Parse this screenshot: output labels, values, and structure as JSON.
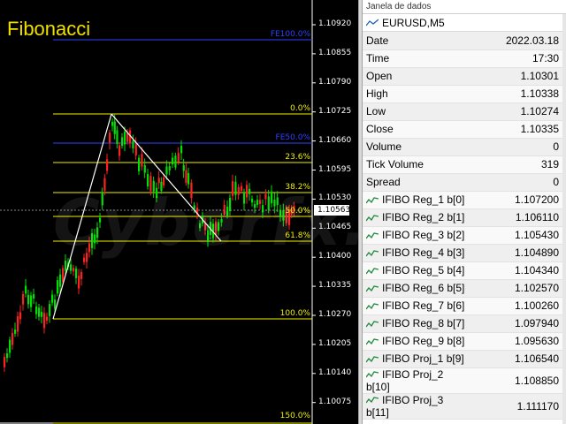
{
  "chart": {
    "title": "Fibonacci",
    "watermark": "Cyberfx.ir",
    "current_price": "1.10563",
    "price_axis": [
      "1.10920",
      "1.10855",
      "1.10790",
      "1.10725",
      "1.10660",
      "1.10595",
      "1.10530",
      "1.10465",
      "1.10400",
      "1.10335",
      "1.10270",
      "1.10205",
      "1.10140",
      "1.10075",
      "1.10010"
    ],
    "fib_levels": [
      {
        "label": "FE100.0%",
        "color": "#3040ff"
      },
      {
        "label": "0.0%",
        "color": "#f0f000"
      },
      {
        "label": "FE50.0%",
        "color": "#3040ff"
      },
      {
        "label": "23.6%",
        "color": "#f0f000"
      },
      {
        "label": "38.2%",
        "color": "#f0f000"
      },
      {
        "label": "50.0%",
        "color": "#f0f000"
      },
      {
        "label": "61.8%",
        "color": "#f0f000"
      },
      {
        "label": "100.0%",
        "color": "#f0f000"
      },
      {
        "label": "150.0%",
        "color": "#f0f000"
      }
    ],
    "colors": {
      "bull": "#00e000",
      "bear": "#ff2020",
      "fib": "#f0f000",
      "proj": "#3040ff",
      "trend": "#ffffff"
    }
  },
  "data_window": {
    "title": "Janela de dados",
    "symbol": "EURUSD,M5",
    "rows": [
      {
        "label": "Date",
        "value": "2022.03.18"
      },
      {
        "label": "Time",
        "value": "17:30"
      },
      {
        "label": "Open",
        "value": "1.10301"
      },
      {
        "label": "High",
        "value": "1.10338"
      },
      {
        "label": "Low",
        "value": "1.10274"
      },
      {
        "label": "Close",
        "value": "1.10335"
      },
      {
        "label": "Volume",
        "value": "0"
      },
      {
        "label": "Tick Volume",
        "value": "319"
      },
      {
        "label": "Spread",
        "value": "0"
      }
    ],
    "indicators": [
      {
        "label": "IFIBO Reg_1 b[0]",
        "value": "1.107200"
      },
      {
        "label": "IFIBO Reg_2 b[1]",
        "value": "1.106110"
      },
      {
        "label": "IFIBO Reg_3 b[2]",
        "value": "1.105430"
      },
      {
        "label": "IFIBO Reg_4 b[3]",
        "value": "1.104890"
      },
      {
        "label": "IFIBO Reg_5 b[4]",
        "value": "1.104340"
      },
      {
        "label": "IFIBO Reg_6 b[5]",
        "value": "1.102570"
      },
      {
        "label": "IFIBO Reg_7 b[6]",
        "value": "1.100260"
      },
      {
        "label": "IFIBO Reg_8 b[7]",
        "value": "1.097940"
      },
      {
        "label": "IFIBO Reg_9 b[8]",
        "value": "1.095630"
      },
      {
        "label": "IFIBO Proj_1 b[9]",
        "value": "1.106540"
      },
      {
        "label": "IFIBO Proj_2 b[10]",
        "value": "1.108850"
      },
      {
        "label": "IFIBO Proj_3 b[11]",
        "value": "1.111170"
      }
    ]
  }
}
